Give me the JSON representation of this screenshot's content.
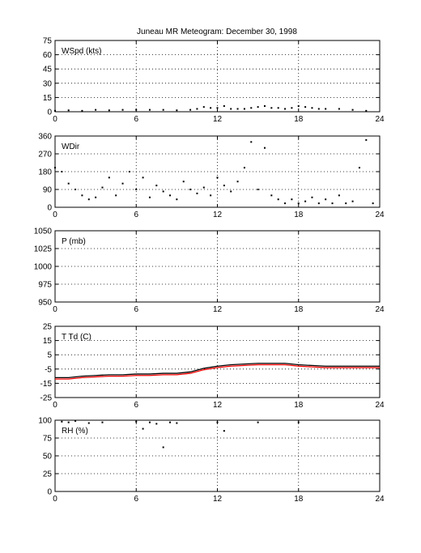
{
  "title": "Juneau MR Meteogram:   December 30, 1998",
  "x_ticks": [
    0,
    6,
    12,
    18,
    24
  ],
  "colors": {
    "axis": "#000000",
    "temperature": "#000000",
    "dewpoint": "#ff0000",
    "background": "#ffffff"
  },
  "chart_data": [
    {
      "type": "scatter",
      "panel_label": "WSpd (kts)",
      "xlim": [
        0,
        24
      ],
      "ylim": [
        0,
        75
      ],
      "yticks": [
        0,
        15,
        30,
        45,
        60,
        75
      ],
      "grid": true,
      "series": [
        {
          "color": "#000000",
          "marker": "dot",
          "x": [
            0,
            1,
            2,
            3,
            4,
            5,
            6,
            7,
            8,
            9,
            10,
            10.5,
            11,
            11.5,
            12,
            12.5,
            13,
            13.5,
            14,
            14.5,
            15,
            15.5,
            16,
            16.5,
            17,
            17.5,
            18,
            18.5,
            19,
            19.5,
            20,
            21,
            22,
            23
          ],
          "y": [
            1,
            1.5,
            1,
            2,
            1.5,
            2,
            2,
            2,
            2,
            1.5,
            2,
            3,
            5,
            4,
            4,
            6,
            3,
            3,
            3,
            4,
            5,
            6,
            4,
            4,
            3,
            4,
            6,
            5,
            4,
            3,
            3,
            3,
            2,
            1
          ]
        }
      ]
    },
    {
      "type": "scatter",
      "panel_label": "WDir",
      "xlim": [
        0,
        24
      ],
      "ylim": [
        0,
        360
      ],
      "yticks": [
        0,
        90,
        180,
        270,
        360
      ],
      "grid": true,
      "series": [
        {
          "color": "#000000",
          "marker": "dot",
          "x": [
            0,
            0.5,
            1,
            1.5,
            2,
            2.5,
            3,
            3.5,
            4,
            4.5,
            5,
            5.5,
            6,
            6.5,
            7,
            7.5,
            8,
            8.5,
            9,
            9.5,
            10,
            10.5,
            11,
            11.5,
            12,
            12.5,
            13,
            13.5,
            14,
            14.5,
            15,
            15.5,
            16,
            16.5,
            17,
            17.5,
            18,
            18.5,
            19,
            19.5,
            20,
            20.5,
            21,
            21.5,
            22,
            22.5,
            23,
            23.5
          ],
          "y": [
            200,
            180,
            120,
            90,
            60,
            40,
            50,
            100,
            150,
            60,
            120,
            180,
            90,
            150,
            50,
            110,
            80,
            60,
            40,
            130,
            90,
            70,
            100,
            60,
            150,
            110,
            80,
            130,
            200,
            330,
            90,
            300,
            60,
            40,
            20,
            40,
            20,
            30,
            50,
            20,
            40,
            20,
            60,
            20,
            30,
            200,
            340,
            20
          ]
        }
      ]
    },
    {
      "type": "scatter",
      "panel_label": "P (mb)",
      "xlim": [
        0,
        24
      ],
      "ylim": [
        950,
        1050
      ],
      "yticks": [
        950,
        975,
        1000,
        1025,
        1050
      ],
      "grid": true,
      "series": []
    },
    {
      "type": "line",
      "panel_label": "T Td (C)",
      "xlim": [
        0,
        24
      ],
      "ylim": [
        -25,
        25
      ],
      "yticks": [
        -25,
        -15,
        -5,
        5,
        15,
        25
      ],
      "grid": true,
      "series": [
        {
          "color": "#000000",
          "x": [
            0,
            1,
            2,
            3,
            4,
            5,
            6,
            7,
            8,
            9,
            10,
            11,
            12,
            13,
            14,
            15,
            16,
            17,
            18,
            19,
            20,
            21,
            22,
            23,
            24
          ],
          "y": [
            -11,
            -11,
            -10,
            -9.5,
            -9,
            -9,
            -8.5,
            -8.5,
            -8,
            -8,
            -7,
            -4.5,
            -3,
            -2,
            -1.5,
            -1,
            -1,
            -1,
            -2,
            -2.5,
            -3,
            -3,
            -3,
            -3,
            -3
          ]
        },
        {
          "color": "#ff0000",
          "x": [
            0,
            1,
            2,
            3,
            4,
            5,
            6,
            7,
            8,
            9,
            10,
            11,
            12,
            13,
            14,
            15,
            16,
            17,
            18,
            19,
            20,
            21,
            22,
            23,
            24
          ],
          "y": [
            -12,
            -12,
            -11,
            -10.5,
            -10,
            -10,
            -9.5,
            -9.5,
            -9,
            -9,
            -8,
            -5.5,
            -4,
            -3,
            -2.5,
            -2,
            -2,
            -2,
            -3,
            -3.5,
            -4,
            -4,
            -4,
            -4,
            -4
          ]
        }
      ]
    },
    {
      "type": "scatter",
      "panel_label": "RH (%)",
      "xlim": [
        0,
        24
      ],
      "ylim": [
        0,
        100
      ],
      "yticks": [
        0,
        25,
        50,
        75,
        100
      ],
      "grid": true,
      "series": [
        {
          "color": "#000000",
          "marker": "dot",
          "x": [
            0.5,
            1,
            1.5,
            2.5,
            3.5,
            6,
            6.5,
            7,
            7.5,
            8,
            8.5,
            9,
            12,
            12.5,
            15,
            18
          ],
          "y": [
            98,
            97,
            99,
            96,
            97,
            98,
            88,
            97,
            95,
            62,
            97,
            96,
            97,
            85,
            97,
            97
          ]
        }
      ]
    }
  ]
}
